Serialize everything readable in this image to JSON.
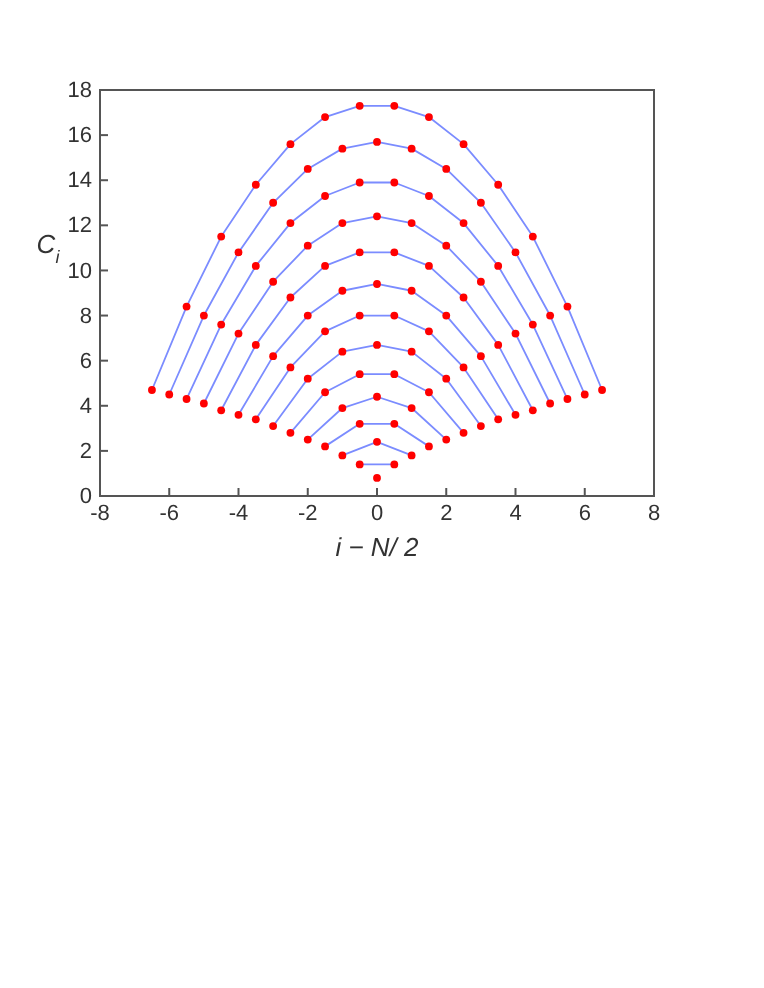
{
  "chart_data": {
    "type": "line",
    "xlabel": "i − N/ 2",
    "ylabel": "C$_{i}$",
    "xlim": [
      -8,
      8
    ],
    "ylim": [
      0,
      18
    ],
    "xticks": [
      -8,
      -6,
      -4,
      -2,
      0,
      2,
      4,
      6,
      8
    ],
    "yticks": [
      0,
      2,
      4,
      6,
      8,
      10,
      12,
      14,
      16,
      18
    ],
    "grid": false,
    "line_style": "solid",
    "series": [
      {
        "color": "#ff0000",
        "type": "scatter",
        "x": [
          0
        ],
        "values": [
          0.8
        ]
      },
      {
        "color": "#7b8cff",
        "x": [
          -0.5,
          0.5
        ],
        "values": [
          1.4,
          1.4
        ]
      },
      {
        "color": "#ff0000",
        "type": "scatter",
        "x": [
          -0.5,
          0.5
        ],
        "values": [
          1.4,
          1.4
        ]
      },
      {
        "color": "#7b8cff",
        "x": [
          -1,
          0,
          1
        ],
        "values": [
          1.8,
          2.4,
          1.8
        ]
      },
      {
        "color": "#ff0000",
        "type": "scatter",
        "x": [
          -1,
          0,
          1
        ],
        "values": [
          1.8,
          2.4,
          1.8
        ]
      },
      {
        "color": "#7b8cff",
        "x": [
          -1.5,
          -0.5,
          0.5,
          1.5
        ],
        "values": [
          2.2,
          3.2,
          3.2,
          2.2
        ]
      },
      {
        "color": "#ff0000",
        "type": "scatter",
        "x": [
          -1.5,
          -0.5,
          0.5,
          1.5
        ],
        "values": [
          2.2,
          3.2,
          3.2,
          2.2
        ]
      },
      {
        "color": "#7b8cff",
        "x": [
          -2,
          -1,
          0,
          1,
          2
        ],
        "values": [
          2.5,
          3.9,
          4.4,
          3.9,
          2.5
        ]
      },
      {
        "color": "#ff0000",
        "type": "scatter",
        "x": [
          -2,
          -1,
          0,
          1,
          2
        ],
        "values": [
          2.5,
          3.9,
          4.4,
          3.9,
          2.5
        ]
      },
      {
        "color": "#7b8cff",
        "x": [
          -2.5,
          -1.5,
          -0.5,
          0.5,
          1.5,
          2.5
        ],
        "values": [
          2.8,
          4.6,
          5.4,
          5.4,
          4.6,
          2.8
        ]
      },
      {
        "color": "#ff0000",
        "type": "scatter",
        "x": [
          -2.5,
          -1.5,
          -0.5,
          0.5,
          1.5,
          2.5
        ],
        "values": [
          2.8,
          4.6,
          5.4,
          5.4,
          4.6,
          2.8
        ]
      },
      {
        "color": "#7b8cff",
        "x": [
          -3,
          -2,
          -1,
          0,
          1,
          2,
          3
        ],
        "values": [
          3.1,
          5.2,
          6.4,
          6.7,
          6.4,
          5.2,
          3.1
        ]
      },
      {
        "color": "#ff0000",
        "type": "scatter",
        "x": [
          -3,
          -2,
          -1,
          0,
          1,
          2,
          3
        ],
        "values": [
          3.1,
          5.2,
          6.4,
          6.7,
          6.4,
          5.2,
          3.1
        ]
      },
      {
        "color": "#7b8cff",
        "x": [
          -3.5,
          -2.5,
          -1.5,
          -0.5,
          0.5,
          1.5,
          2.5,
          3.5
        ],
        "values": [
          3.4,
          5.7,
          7.3,
          8.0,
          8.0,
          7.3,
          5.7,
          3.4
        ]
      },
      {
        "color": "#ff0000",
        "type": "scatter",
        "x": [
          -3.5,
          -2.5,
          -1.5,
          -0.5,
          0.5,
          1.5,
          2.5,
          3.5
        ],
        "values": [
          3.4,
          5.7,
          7.3,
          8.0,
          8.0,
          7.3,
          5.7,
          3.4
        ]
      },
      {
        "color": "#7b8cff",
        "x": [
          -4,
          -3,
          -2,
          -1,
          0,
          1,
          2,
          3,
          4
        ],
        "values": [
          3.6,
          6.2,
          8.0,
          9.1,
          9.4,
          9.1,
          8.0,
          6.2,
          3.6
        ]
      },
      {
        "color": "#ff0000",
        "type": "scatter",
        "x": [
          -4,
          -3,
          -2,
          -1,
          0,
          1,
          2,
          3,
          4
        ],
        "values": [
          3.6,
          6.2,
          8.0,
          9.1,
          9.4,
          9.1,
          8.0,
          6.2,
          3.6
        ]
      },
      {
        "color": "#7b8cff",
        "x": [
          -4.5,
          -3.5,
          -2.5,
          -1.5,
          -0.5,
          0.5,
          1.5,
          2.5,
          3.5,
          4.5
        ],
        "values": [
          3.8,
          6.7,
          8.8,
          10.2,
          10.8,
          10.8,
          10.2,
          8.8,
          6.7,
          3.8
        ]
      },
      {
        "color": "#ff0000",
        "type": "scatter",
        "x": [
          -4.5,
          -3.5,
          -2.5,
          -1.5,
          -0.5,
          0.5,
          1.5,
          2.5,
          3.5,
          4.5
        ],
        "values": [
          3.8,
          6.7,
          8.8,
          10.2,
          10.8,
          10.8,
          10.2,
          8.8,
          6.7,
          3.8
        ]
      },
      {
        "color": "#7b8cff",
        "x": [
          -5,
          -4,
          -3,
          -2,
          -1,
          0,
          1,
          2,
          3,
          4,
          5
        ],
        "values": [
          4.1,
          7.2,
          9.5,
          11.1,
          12.1,
          12.4,
          12.1,
          11.1,
          9.5,
          7.2,
          4.1
        ]
      },
      {
        "color": "#ff0000",
        "type": "scatter",
        "x": [
          -5,
          -4,
          -3,
          -2,
          -1,
          0,
          1,
          2,
          3,
          4,
          5
        ],
        "values": [
          4.1,
          7.2,
          9.5,
          11.1,
          12.1,
          12.4,
          12.1,
          11.1,
          9.5,
          7.2,
          4.1
        ]
      },
      {
        "color": "#7b8cff",
        "x": [
          -5.5,
          -4.5,
          -3.5,
          -2.5,
          -1.5,
          -0.5,
          0.5,
          1.5,
          2.5,
          3.5,
          4.5,
          5.5
        ],
        "values": [
          4.3,
          7.6,
          10.2,
          12.1,
          13.3,
          13.9,
          13.9,
          13.3,
          12.1,
          10.2,
          7.6,
          4.3
        ]
      },
      {
        "color": "#ff0000",
        "type": "scatter",
        "x": [
          -5.5,
          -4.5,
          -3.5,
          -2.5,
          -1.5,
          -0.5,
          0.5,
          1.5,
          2.5,
          3.5,
          4.5,
          5.5
        ],
        "values": [
          4.3,
          7.6,
          10.2,
          12.1,
          13.3,
          13.9,
          13.9,
          13.3,
          12.1,
          10.2,
          7.6,
          4.3
        ]
      },
      {
        "color": "#7b8cff",
        "x": [
          -6,
          -5,
          -4,
          -3,
          -2,
          -1,
          0,
          1,
          2,
          3,
          4,
          5,
          6
        ],
        "values": [
          4.5,
          8.0,
          10.8,
          13.0,
          14.5,
          15.4,
          15.7,
          15.4,
          14.5,
          13.0,
          10.8,
          8.0,
          4.5
        ]
      },
      {
        "color": "#ff0000",
        "type": "scatter",
        "x": [
          -6,
          -5,
          -4,
          -3,
          -2,
          -1,
          0,
          1,
          2,
          3,
          4,
          5,
          6
        ],
        "values": [
          4.5,
          8.0,
          10.8,
          13.0,
          14.5,
          15.4,
          15.7,
          15.4,
          14.5,
          13.0,
          10.8,
          8.0,
          4.5
        ]
      },
      {
        "color": "#7b8cff",
        "x": [
          -6.5,
          -5.5,
          -4.5,
          -3.5,
          -2.5,
          -1.5,
          -0.5,
          0.5,
          1.5,
          2.5,
          3.5,
          4.5,
          5.5,
          6.5
        ],
        "values": [
          4.7,
          8.4,
          11.5,
          13.8,
          15.6,
          16.8,
          17.3,
          17.3,
          16.8,
          15.6,
          13.8,
          11.5,
          8.4,
          4.7
        ]
      },
      {
        "color": "#ff0000",
        "type": "scatter",
        "x": [
          -6.5,
          -5.5,
          -4.5,
          -3.5,
          -2.5,
          -1.5,
          -0.5,
          0.5,
          1.5,
          2.5,
          3.5,
          4.5,
          5.5,
          6.5
        ],
        "values": [
          4.7,
          8.4,
          11.5,
          13.8,
          15.6,
          16.8,
          17.3,
          17.3,
          16.8,
          15.6,
          13.8,
          11.5,
          8.4,
          4.7
        ]
      }
    ]
  }
}
